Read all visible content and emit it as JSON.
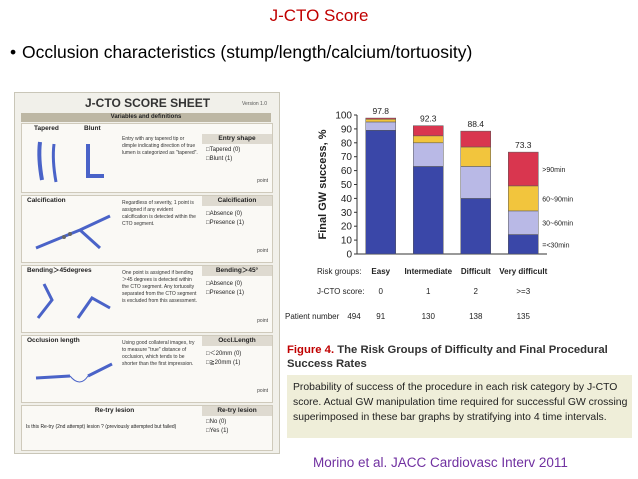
{
  "slide": {
    "title": "J-CTO Score",
    "bullet": "Occlusion characteristics (stump/length/calcium/tortuosity)",
    "citation": "Morino et al. JACC Cardiovasc Interv 2011",
    "title_color": "#c00000",
    "citation_color": "#7030a0"
  },
  "sheet": {
    "title": "J-CTO SCORE SHEET",
    "version": "Version 1.0",
    "header": "Variables and definitions",
    "entry": {
      "left_label": "Tapered",
      "right_label": "Blunt",
      "desc": "Entry with any tapered tip or dimple indicating direction of true lumen is categorized as \"tapered\".",
      "heading": "Entry shape",
      "opt1": "□Tapered  (0)",
      "opt2": "□Blunt     (1)",
      "point": "point"
    },
    "calc": {
      "label": "Calcification",
      "desc": "Regardless of severity, 1 point is assigned if any evident calcification is detected within the CTO segment.",
      "heading": "Calcification",
      "opt1": "□Absence  (0)",
      "opt2": "□Presence (1)",
      "point": "point"
    },
    "bend": {
      "label": "Bending＞45degrees",
      "desc": "One point is assigned if bending＞45 degrees is detected within the CTO segment. Any tortuosity separated from the CTO segment is excluded from this assessment.",
      "heading": "Bending＞45°",
      "opt1": "□Absence  (0)",
      "opt2": "□Presence (1)",
      "point": "point"
    },
    "length": {
      "label": "Occlusion length",
      "desc": "Using good collateral images, try to measure \"true\" distance of occlusion, which tends to be shorter than the first impression.",
      "heading": "Occl.Length",
      "opt1": "□＜20mm  (0)",
      "opt2": "□≧20mm  (1)",
      "point": "point"
    },
    "retry": {
      "label": "Re-try lesion",
      "question": "Is this Re-try (2nd attempt) lesion ? (previously attempted but failed)",
      "heading": "Re-try lesion",
      "opt1": "□No   (0)",
      "opt2": "□Yes  (1)"
    }
  },
  "chart_data": {
    "type": "bar",
    "stacked": true,
    "ylabel": "Final GW success, %",
    "ylim": [
      0,
      100
    ],
    "yticks": [
      0,
      10,
      20,
      30,
      40,
      50,
      60,
      70,
      80,
      90,
      100
    ],
    "categories": [
      "Easy",
      "Intermediate",
      "Difficult",
      "Very difficult"
    ],
    "totals": [
      "97.8",
      "92.3",
      "88.4",
      "73.3"
    ],
    "total_values": [
      97.8,
      92.3,
      88.4,
      73.3
    ],
    "series": [
      {
        "name": "=<30min",
        "color": "#3a47a8",
        "values": [
          89,
          63,
          40,
          14
        ]
      },
      {
        "name": "30~60min",
        "color": "#b9b9e6",
        "values": [
          6,
          17,
          23,
          17
        ]
      },
      {
        "name": "60~90min",
        "color": "#f2c53d",
        "values": [
          2,
          5,
          14,
          18
        ]
      },
      {
        "name": ">90min",
        "color": "#d9364f",
        "values": [
          0.8,
          7.3,
          11.4,
          24.3
        ]
      }
    ],
    "rows": {
      "risk_label": "Risk groups:",
      "score_label": "J-CTO score:",
      "scores": [
        "0",
        "1",
        "2",
        ">=3"
      ],
      "patient_label": "Patient number",
      "patient_total": "494",
      "patients": [
        "91",
        "130",
        "138",
        "135"
      ]
    }
  },
  "figure": {
    "label": "Figure 4.",
    "title": "The Risk Groups of Difficulty and Final Procedural Success Rates",
    "caption": "Probability of success of the procedure in each risk category by J-CTO score. Actual GW manipulation time required for successful GW crossing superimposed in these bar graphs by stratifying into 4 time intervals."
  }
}
